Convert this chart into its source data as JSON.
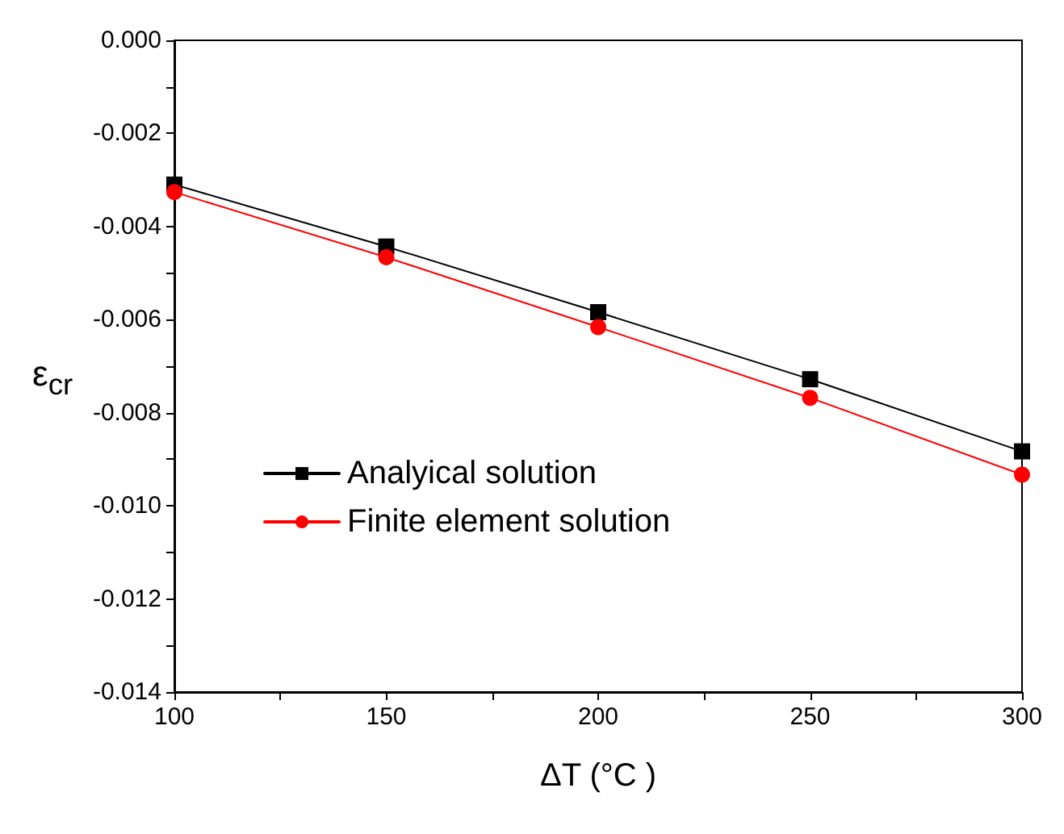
{
  "chart_data": {
    "type": "line",
    "xlabel": "ΔT (°C )",
    "ylabel": "ε$_{cr}$",
    "x": [
      100,
      150,
      200,
      250,
      300
    ],
    "series": [
      {
        "name": "Analyical solution",
        "color": "#000000",
        "marker": "square",
        "values": [
          -0.0031,
          -0.00443,
          -0.00584,
          -0.00728,
          -0.00883
        ]
      },
      {
        "name": "Finite element solution",
        "color": "#ff0000",
        "marker": "circle",
        "values": [
          -0.00326,
          -0.00466,
          -0.00616,
          -0.00768,
          -0.00933
        ]
      }
    ],
    "xlim": [
      100,
      300
    ],
    "xticks": [
      100,
      {
        "value": 125,
        "label": null
      },
      150,
      {
        "value": 175,
        "label": null
      },
      200,
      {
        "value": 225,
        "label": null
      },
      250,
      {
        "value": 275,
        "label": null
      },
      300
    ],
    "ylim": [
      -0.014,
      0
    ],
    "yticks": [
      {
        "value": 0,
        "label": "0.000"
      },
      {
        "value": -0.001,
        "label": null
      },
      {
        "value": -0.002,
        "label": "-0.002"
      },
      {
        "value": -0.003,
        "label": null
      },
      {
        "value": -0.004,
        "label": "-0.004"
      },
      {
        "value": -0.005,
        "label": null
      },
      {
        "value": -0.006,
        "label": "-0.006"
      },
      {
        "value": -0.007,
        "label": null
      },
      {
        "value": -0.008,
        "label": "-0.008"
      },
      {
        "value": -0.009,
        "label": null
      },
      {
        "value": -0.01,
        "label": "-0.010"
      },
      {
        "value": -0.011,
        "label": null
      },
      {
        "value": -0.012,
        "label": "-0.012"
      },
      {
        "value": -0.013,
        "label": null
      },
      {
        "value": -0.014,
        "label": "-0.014"
      }
    ],
    "grid": false,
    "legend": "center left",
    "line_style": "solid"
  }
}
